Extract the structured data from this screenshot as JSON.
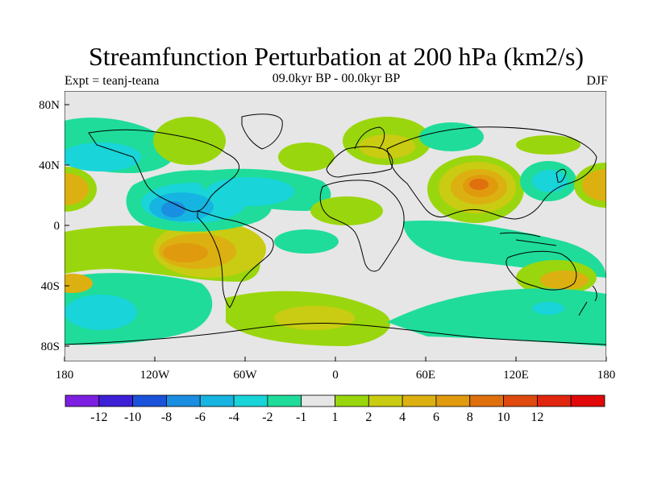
{
  "title": "Streamfunction Perturbation at 200 hPa (km2/s)",
  "subtitle_left": "Expt = teanj-teana",
  "subtitle_center": "09.0kyr BP - 00.0kyr BP",
  "subtitle_right": "DJF",
  "lat_ticks": [
    "80N",
    "40N",
    "0",
    "40S",
    "80S"
  ],
  "lon_ticks": [
    "180",
    "120W",
    "60W",
    "0",
    "60E",
    "120E",
    "180"
  ],
  "colorbar": {
    "colors": [
      "#7d1fe0",
      "#3d20d6",
      "#1a52d9",
      "#1a8ee0",
      "#16b4e0",
      "#19d4d8",
      "#1fdc9a",
      "#e6e6e6",
      "#9ad60d",
      "#c9cc12",
      "#dcb010",
      "#e09a0e",
      "#e0700e",
      "#e04a0e",
      "#e0260e",
      "#e00808"
    ],
    "labels": [
      "-12",
      "-10",
      "-8",
      "-6",
      "-4",
      "-2",
      "-1",
      "1",
      "2",
      "4",
      "6",
      "8",
      "10",
      "12"
    ]
  },
  "colors": {
    "ocean_bg": "#e6e6e6",
    "coast": "#000000",
    "neg1": "#1fdc9a",
    "neg2": "#19d4d8",
    "neg4": "#16b4e0",
    "neg6": "#1a8ee0",
    "pos1": "#9ad60d",
    "pos2": "#c9cc12",
    "pos4": "#dcb010",
    "pos6": "#e09a0e",
    "pos8": "#e0700e",
    "pos10": "#e04a0e"
  }
}
